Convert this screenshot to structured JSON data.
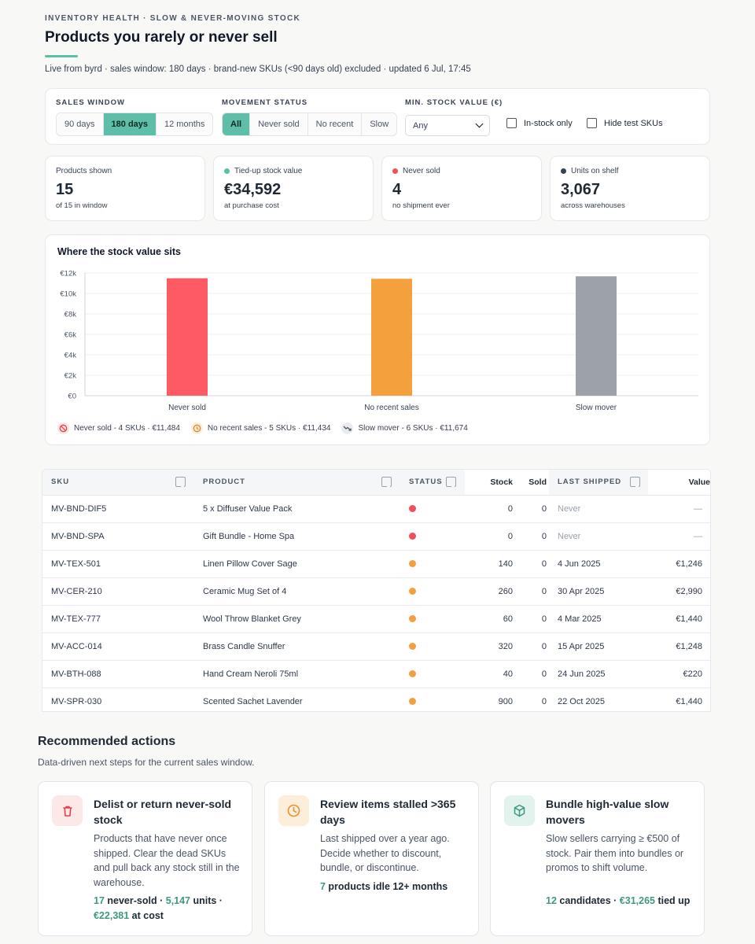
{
  "header": {
    "eyebrow": "INVENTORY HEALTH · SLOW & NEVER-MOVING STOCK",
    "title": "Products you rarely or never sell",
    "subtitle": "Live from byrd · sales window: 180 days · brand-new SKUs (<90 days old) excluded · updated 6 Jul, 17:45"
  },
  "filters": {
    "sales_window": {
      "label": "SALES WINDOW",
      "options": [
        "90 days",
        "180 days",
        "12 months"
      ],
      "selected": "180 days"
    },
    "movement_status": {
      "label": "MOVEMENT STATUS",
      "options": [
        "All",
        "Never sold",
        "No recent",
        "Slow"
      ],
      "selected": "All"
    },
    "min_stock_value": {
      "label": "MIN. STOCK VALUE (€)",
      "value": "Any"
    },
    "in_stock_only": {
      "label": "In-stock only",
      "checked": false
    },
    "hide_test_skus": {
      "label": "Hide test SKUs",
      "checked": false
    }
  },
  "stats": [
    {
      "label": "Products shown",
      "value": "15",
      "sub": "of 15 in window",
      "dot": ""
    },
    {
      "label": "Tied-up stock value",
      "value": "€34,592",
      "sub": "at purchase cost",
      "dot": "#5bbfa6"
    },
    {
      "label": "Never sold",
      "value": "4",
      "sub": "no shipment ever",
      "dot": "#f0505a"
    },
    {
      "label": "Units on shelf",
      "value": "3,067",
      "sub": "across warehouses",
      "dot": "#374151"
    }
  ],
  "chart": {
    "title": "Where the stock value sits",
    "legend": [
      {
        "label": "Never sold - 4 SKUs · €11,484",
        "icon": "ban-icon",
        "color": "#f0505a"
      },
      {
        "label": "No recent sales - 5 SKUs · €11,434",
        "icon": "clock-icon",
        "color": "#e8902f"
      },
      {
        "label": "Slow mover - 6 SKUs · €11,674",
        "icon": "trend-down-icon",
        "color": "#4b5563"
      }
    ]
  },
  "chart_data": {
    "type": "bar",
    "categories": [
      "Never sold",
      "No recent sales",
      "Slow mover"
    ],
    "values": [
      11484,
      11434,
      11674
    ],
    "colors": [
      "#fd5a63",
      "#f4a03c",
      "#9da2a9"
    ],
    "yticks": [
      "€0",
      "€2k",
      "€4k",
      "€6k",
      "€8k",
      "€10k",
      "€12k"
    ],
    "ylim": [
      0,
      12000
    ],
    "grid": true
  },
  "table": {
    "headers": {
      "sku": "SKU",
      "product": "PRODUCT",
      "status": "STATUS",
      "stock": "Stock",
      "sold": "Sold",
      "last_shipped": "LAST SHIPPED",
      "value": "Value"
    },
    "rows": [
      {
        "sku": "MV-BND-DIF5",
        "product": "5 x Diffuser Value Pack",
        "status": "never",
        "stock": "0",
        "sold": "0",
        "last": "Never",
        "value": "—"
      },
      {
        "sku": "MV-BND-SPA",
        "product": "Gift Bundle - Home Spa",
        "status": "never",
        "stock": "0",
        "sold": "0",
        "last": "Never",
        "value": "—"
      },
      {
        "sku": "MV-TEX-501",
        "product": "Linen Pillow Cover Sage",
        "status": "recent",
        "stock": "140",
        "sold": "0",
        "last": "4 Jun 2025",
        "value": "€1,246"
      },
      {
        "sku": "MV-CER-210",
        "product": "Ceramic Mug Set of 4",
        "status": "recent",
        "stock": "260",
        "sold": "0",
        "last": "30 Apr 2025",
        "value": "€2,990"
      },
      {
        "sku": "MV-TEX-777",
        "product": "Wool Throw Blanket Grey",
        "status": "recent",
        "stock": "60",
        "sold": "0",
        "last": "4 Mar 2025",
        "value": "€1,440"
      },
      {
        "sku": "MV-ACC-014",
        "product": "Brass Candle Snuffer",
        "status": "recent",
        "stock": "320",
        "sold": "0",
        "last": "15 Apr 2025",
        "value": "€1,248"
      },
      {
        "sku": "MV-BTH-088",
        "product": "Hand Cream Neroli 75ml",
        "status": "recent",
        "stock": "40",
        "sold": "0",
        "last": "24 Jun 2025",
        "value": "€220"
      },
      {
        "sku": "MV-SPR-030",
        "product": "Scented Sachet Lavender",
        "status": "recent",
        "stock": "900",
        "sold": "0",
        "last": "22 Oct 2025",
        "value": "€1,440"
      }
    ],
    "status_colors": {
      "never": "#f0505a",
      "recent": "#f0a040"
    }
  },
  "actions": {
    "title": "Recommended actions",
    "subtitle": "Data-driven next steps for the current sales window.",
    "cards": [
      {
        "title": "Delist or return never-sold stock",
        "desc": "Products that have never once shipped. Clear the dead SKUs and pull back any stock still in the warehouse.",
        "m1": "17",
        "m2": " never-sold · ",
        "m3": "5,147",
        "m4": " units · ",
        "m5": "€22,381",
        "m6": " at cost"
      },
      {
        "title": "Review items stalled >365 days",
        "desc": "Last shipped over a year ago. Decide whether to discount, bundle, or discontinue.",
        "m1": "7",
        "m2": " products idle 12+ months"
      },
      {
        "title": "Bundle high-value slow movers",
        "desc": "Slow sellers carrying ≥ €500 of stock. Pair them into bundles or promos to shift volume.",
        "m1": "12",
        "m2": " candidates · ",
        "m3": "€31,265",
        "m4": " tied up"
      }
    ]
  }
}
